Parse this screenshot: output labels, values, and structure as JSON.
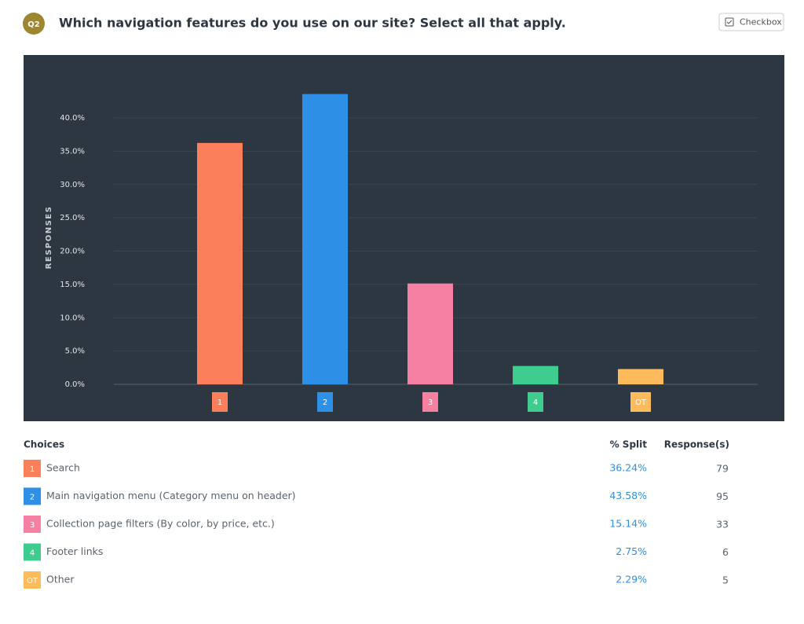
{
  "header": {
    "badge": "Q2",
    "question": "Which navigation features do you use on our site? Select all that apply.",
    "type_button": "Checkbox"
  },
  "chart_data": {
    "type": "bar",
    "y_label": "RESPONSES",
    "categories": [
      "1",
      "2",
      "3",
      "4",
      "OT"
    ],
    "values": [
      36.24,
      43.58,
      15.14,
      2.75,
      2.29
    ],
    "colors": [
      "#fc7f5c",
      "#2d8fe6",
      "#f580a2",
      "#3fcc8f",
      "#fdbb5b"
    ],
    "ylim": [
      0,
      45
    ],
    "yticks": [
      {
        "value": 0,
        "label": "0.0%"
      },
      {
        "value": 5,
        "label": "5.0%"
      },
      {
        "value": 10,
        "label": "10.0%"
      },
      {
        "value": 15,
        "label": "15.0%"
      },
      {
        "value": 20,
        "label": "20.0%"
      },
      {
        "value": 25,
        "label": "25.0%"
      },
      {
        "value": 30,
        "label": "30.0%"
      },
      {
        "value": 35,
        "label": "35.0%"
      },
      {
        "value": 40,
        "label": "40.0%"
      }
    ],
    "grid": true
  },
  "table": {
    "headers": [
      "Choices",
      "% Split",
      "Response(s)"
    ],
    "rows": [
      [
        "1",
        "Search",
        "36.24%",
        79
      ],
      [
        "2",
        "Main navigation menu (Category menu on header)",
        "43.58%",
        95
      ],
      [
        "3",
        "Collection page filters (By color, by price, etc.)",
        "15.14%",
        33
      ],
      [
        "4",
        "Footer links",
        "2.75%",
        6
      ],
      [
        "OT",
        "Other",
        "2.29%",
        5
      ]
    ]
  }
}
